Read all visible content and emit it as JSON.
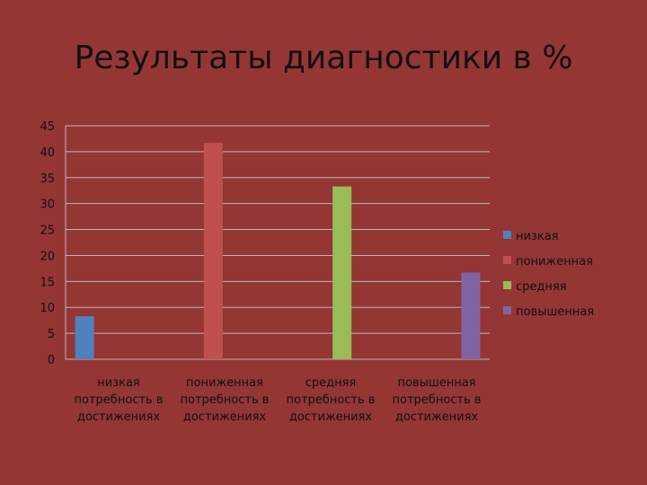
{
  "slide": {
    "title": "Результаты диагностики в %"
  },
  "chart_data": {
    "type": "bar",
    "title": "Результаты диагностики в %",
    "ylim": [
      0,
      45
    ],
    "yticks": [
      0,
      5,
      10,
      15,
      20,
      25,
      30,
      35,
      40,
      45
    ],
    "grid": true,
    "legend_position": "right",
    "categories": [
      [
        "низкая",
        "потребность в",
        "достижениях"
      ],
      [
        "пониженная",
        "потребность в",
        "достижениях"
      ],
      [
        "средняя",
        "потребность в",
        "достижениях"
      ],
      [
        "повышенная",
        "потребность в",
        "достижениях"
      ]
    ],
    "series": [
      {
        "name": "низкая",
        "color": "#4f81bd",
        "values": [
          8.3,
          null,
          null,
          null
        ]
      },
      {
        "name": "пониженная",
        "color": "#c0504d",
        "values": [
          null,
          41.7,
          null,
          null
        ]
      },
      {
        "name": "средняя",
        "color": "#9bbb59",
        "values": [
          null,
          null,
          33.3,
          null
        ]
      },
      {
        "name": "повышенная",
        "color": "#8064a2",
        "values": [
          null,
          null,
          null,
          16.7
        ]
      }
    ]
  }
}
